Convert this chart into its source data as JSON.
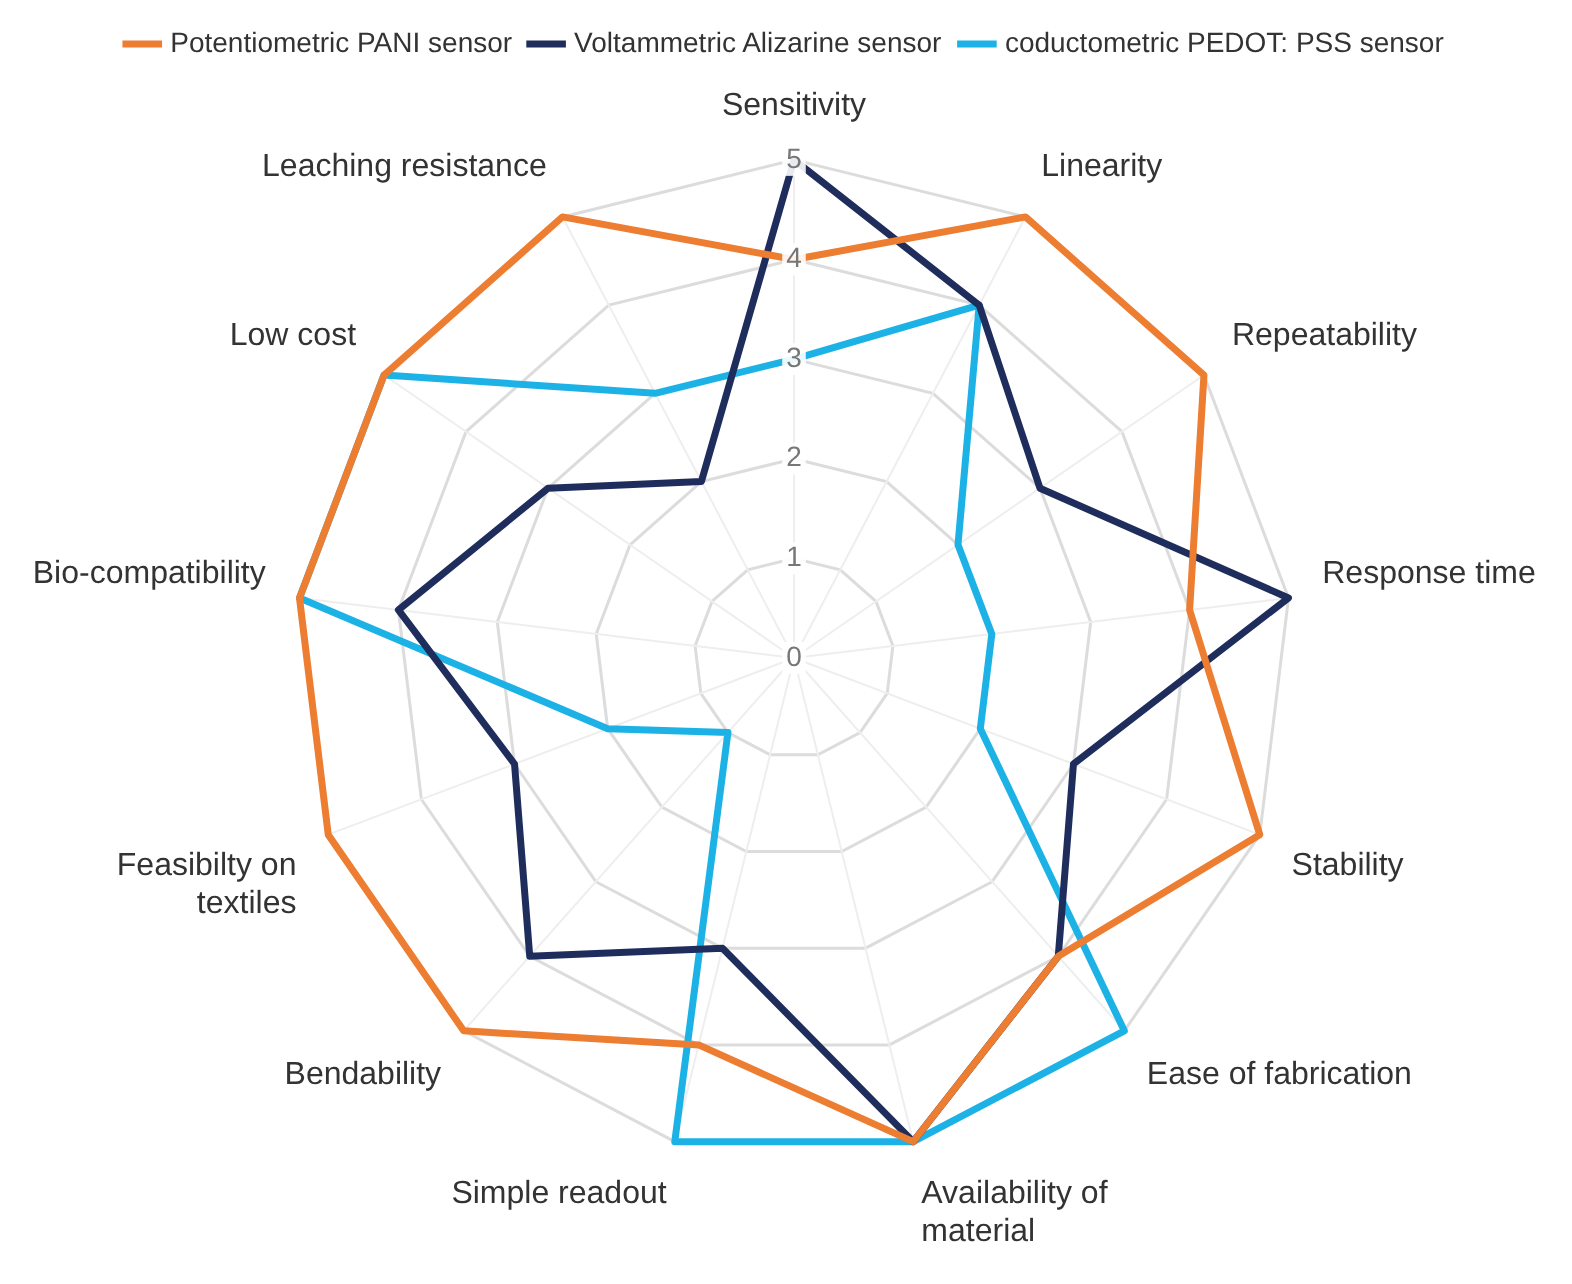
{
  "chart_data": {
    "type": "radar",
    "categories": [
      "Sensitivity",
      "Linearity",
      "Repeatability",
      "Response time",
      "Stability",
      "Ease of fabrication",
      "Availability of material",
      "Simple readout",
      "Bendability",
      "Feasibilty on textiles",
      "Bio-compatibility",
      "Low cost",
      "Leaching resistance"
    ],
    "series": [
      {
        "name": "Potentiometric PANI sensor",
        "color": "#ed7d31",
        "values": [
          4,
          5,
          5,
          4,
          5,
          4,
          5,
          4,
          5,
          5,
          5,
          5,
          5
        ]
      },
      {
        "name": "Voltammetric Alizarine sensor",
        "color": "#1f2d5c",
        "values": [
          5,
          4,
          3,
          5,
          3,
          4,
          5,
          3,
          4,
          3,
          4,
          3,
          2
        ]
      },
      {
        "name": "coductometric PEDOT: PSS sensor",
        "color": "#1cb2e6",
        "values": [
          3,
          4,
          2,
          2,
          2,
          5,
          5,
          5,
          1,
          2,
          5,
          5,
          3
        ]
      }
    ],
    "ylim": [
      0,
      5
    ],
    "yticks": [
      0,
      1,
      2,
      3,
      4,
      5
    ],
    "grid": true,
    "legend": "top",
    "marker": "none"
  }
}
